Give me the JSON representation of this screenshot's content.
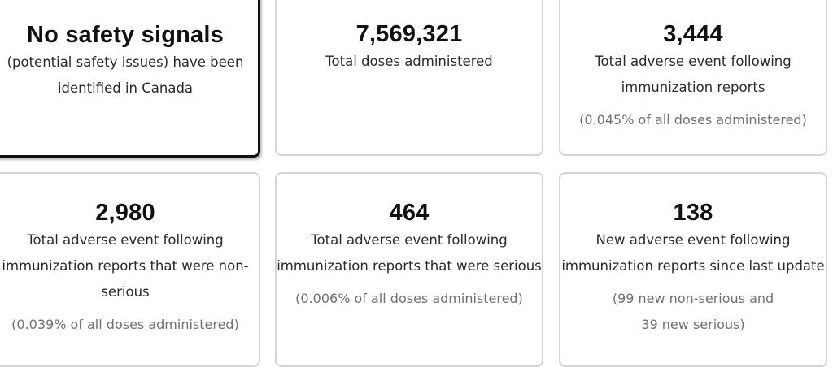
{
  "cards": [
    {
      "headline": "No safety signals",
      "lines": [
        "(potential safety issues) have been",
        "identified in Canada"
      ],
      "note": []
    },
    {
      "headline": "7,569,321",
      "lines": [
        "Total doses administered"
      ],
      "note": []
    },
    {
      "headline": "3,444",
      "lines": [
        "Total adverse event following",
        "immunization reports"
      ],
      "note": [
        "(0.045% of all doses administered)"
      ]
    },
    {
      "headline": "2,980",
      "lines": [
        "Total adverse event following",
        "immunization reports that were non-",
        "serious"
      ],
      "note": [
        "(0.039% of all doses administered)"
      ]
    },
    {
      "headline": "464",
      "lines": [
        "Total adverse event following",
        "immunization reports that were serious"
      ],
      "note": [
        "(0.006% of all doses administered)"
      ]
    },
    {
      "headline": "138",
      "lines": [
        "New adverse event following",
        "immunization reports since last update"
      ],
      "note": [
        "(99 new non-serious and",
        "39 new serious)"
      ]
    }
  ]
}
